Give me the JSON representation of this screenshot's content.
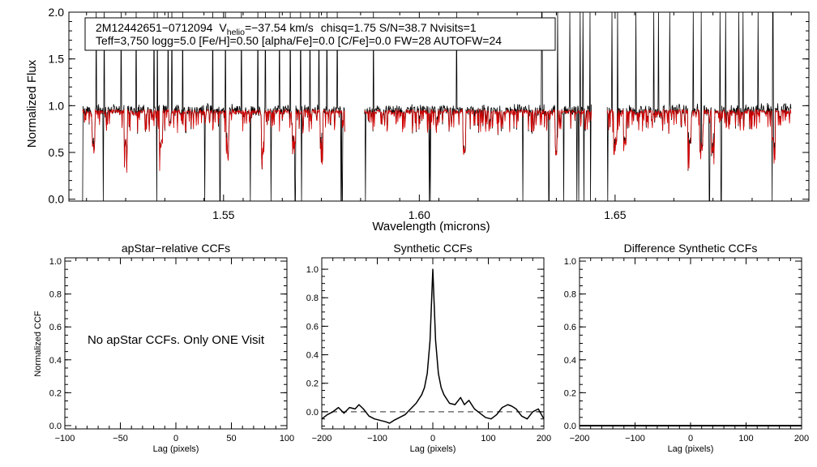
{
  "colors": {
    "observed": "#000000",
    "model": "#d40000",
    "axis": "#000000",
    "zero_line": "#555555"
  },
  "chart_data": [
    {
      "type": "line",
      "panel": "spectrum",
      "title": "",
      "xlabel": "Wavelength (microns)",
      "ylabel": "Normalized Flux",
      "xlim": [
        1.5105,
        1.6995
      ],
      "ylim": [
        -0.02,
        2.0
      ],
      "xticks": [
        "1.55",
        "1.60",
        "1.65"
      ],
      "yticks": [
        "0.0",
        "0.5",
        "1.0",
        "1.5",
        "2.0"
      ],
      "annotation": {
        "star_id": "2M12442651−0712094",
        "v_symbol": "V",
        "v_subscript": "helio",
        "v_value": "=−37.54 km/s",
        "stats": "chisq=1.75  S/N=38.7  Nvisits=1",
        "params": "Teff=3,750 logg=5.0 [Fe/H]=0.50 [alpha/Fe]=0.0 [C/Fe]=0.0 FW=28 AUTOFW=24"
      },
      "chip_ranges": [
        [
          1.514,
          1.581
        ],
        [
          1.586,
          1.644
        ],
        [
          1.648,
          1.695
        ]
      ],
      "continuum": 0.95,
      "series": [
        {
          "name": "observed",
          "color": "#000000"
        },
        {
          "name": "synthetic model",
          "color": "#d40000"
        }
      ],
      "spikes_up": [
        1.5175,
        1.5195,
        1.5238,
        1.5277,
        1.5322,
        1.5331,
        1.5358,
        1.5368,
        1.5396,
        1.5472,
        1.5505,
        1.5546,
        1.5588,
        1.5607,
        1.5643,
        1.567,
        1.5697,
        1.5721,
        1.5744,
        1.5764,
        1.579,
        1.5802,
        1.5883,
        1.6095,
        1.6313,
        1.6353,
        1.6384,
        1.6411,
        1.6418,
        1.6436,
        1.6492,
        1.6506,
        1.6553,
        1.6599,
        1.6611,
        1.664,
        1.67,
        1.672,
        1.6768,
        1.6782,
        1.6816,
        1.6827,
        1.6865,
        1.6903
      ],
      "spikes_down": [
        1.514,
        1.5193,
        1.533,
        1.5452,
        1.5491,
        1.5568,
        1.5621,
        1.5683,
        1.5699,
        1.58,
        1.5803,
        1.5862,
        1.6026,
        1.6028,
        1.6264,
        1.6331,
        1.6369,
        1.6402,
        1.6407,
        1.642,
        1.6437,
        1.6481,
        1.6741,
        1.6771,
        1.6901
      ],
      "strong_absorptions": [
        1.5168,
        1.525,
        1.534,
        1.551,
        1.56,
        1.568,
        1.575,
        1.6115,
        1.635,
        1.65,
        1.6525,
        1.669,
        1.672,
        1.675,
        1.6905
      ]
    },
    {
      "type": "line",
      "panel": "apstar-ccf",
      "title": "apStar−relative CCFs",
      "xlabel": "Lag (pixels)",
      "ylabel": "Normalized CCF",
      "xlim": [
        -100,
        100
      ],
      "ylim": [
        -0.02,
        1.02
      ],
      "xticks": [
        "−100",
        "−50",
        "0",
        "50",
        "100"
      ],
      "yticks": [
        "0.0",
        "0.2",
        "0.4",
        "0.6",
        "0.8",
        "1.0"
      ],
      "message": "No apStar CCFs.  Only ONE Visit",
      "series": []
    },
    {
      "type": "line",
      "panel": "synthetic-ccf",
      "title": "Synthetic CCFs",
      "xlabel": "Lag (pixels)",
      "ylabel": "",
      "xlim": [
        -200,
        200
      ],
      "ylim": [
        -0.12,
        1.08
      ],
      "xticks": [
        "−200",
        "−100",
        "0",
        "100",
        "200"
      ],
      "yticks": [
        "0.0",
        "0.2",
        "0.4",
        "0.6",
        "0.8",
        "1.0"
      ],
      "reference_line": 0.0,
      "series": [
        {
          "name": "synthetic CCF",
          "x": [
            -200,
            -190,
            -180,
            -170,
            -160,
            -150,
            -140,
            -133,
            -125,
            -115,
            -105,
            -95,
            -85,
            -78,
            -70,
            -60,
            -50,
            -40,
            -30,
            -20,
            -15,
            -10,
            -5,
            0,
            5,
            10,
            15,
            20,
            30,
            40,
            50,
            57,
            65,
            75,
            85,
            95,
            105,
            115,
            125,
            135,
            142,
            150,
            160,
            170,
            180,
            190,
            200
          ],
          "y": [
            -0.05,
            -0.02,
            0.0,
            0.03,
            -0.01,
            0.03,
            0.02,
            0.05,
            0.02,
            -0.03,
            -0.05,
            -0.06,
            -0.07,
            -0.08,
            -0.06,
            -0.04,
            -0.02,
            0.02,
            0.06,
            0.12,
            0.17,
            0.27,
            0.5,
            1.0,
            0.5,
            0.27,
            0.17,
            0.12,
            0.06,
            0.05,
            0.1,
            0.05,
            0.08,
            0.02,
            -0.01,
            -0.04,
            -0.05,
            -0.02,
            0.03,
            0.05,
            0.04,
            0.02,
            -0.03,
            -0.05,
            0.0,
            0.02,
            -0.05
          ]
        }
      ]
    },
    {
      "type": "line",
      "panel": "difference-ccf",
      "title": "Difference Synthetic CCFs",
      "xlabel": "Lag (pixels)",
      "ylabel": "",
      "xlim": [
        -200,
        200
      ],
      "ylim": [
        -0.02,
        1.02
      ],
      "xticks": [
        "−200",
        "−100",
        "0",
        "100",
        "200"
      ],
      "yticks": [
        "0.0",
        "0.2",
        "0.4",
        "0.6",
        "0.8",
        "1.0"
      ],
      "series": [
        {
          "name": "difference CCF",
          "x": [
            -200,
            200
          ],
          "y": [
            0.0,
            0.0
          ]
        }
      ]
    }
  ]
}
